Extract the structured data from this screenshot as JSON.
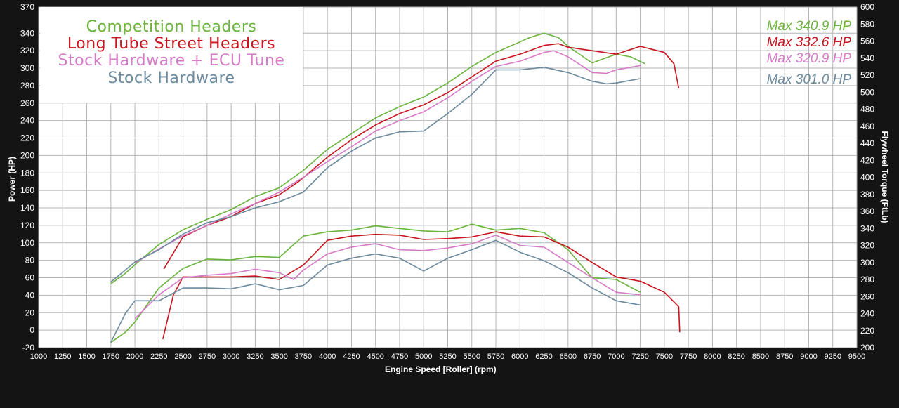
{
  "chart_data": {
    "type": "line",
    "xlabel": "Engine Speed [Roller] (rpm)",
    "ylabel": "Power (HP)",
    "y2label": "Flywheel Torque (FtLb)",
    "xlim": [
      1000,
      9500
    ],
    "ylim": [
      -20,
      370
    ],
    "y2lim": [
      200,
      600
    ],
    "x_ticks": [
      1000,
      1250,
      1500,
      1750,
      2000,
      2250,
      2500,
      2750,
      3000,
      3250,
      3500,
      3750,
      4000,
      4250,
      4500,
      4750,
      5000,
      5250,
      5500,
      5750,
      6000,
      6250,
      6500,
      6750,
      7000,
      7250,
      7500,
      7750,
      8000,
      8250,
      8500,
      8750,
      9000,
      9250,
      9500
    ],
    "y_ticks": [
      -20,
      0,
      20,
      40,
      60,
      80,
      100,
      120,
      140,
      160,
      180,
      200,
      220,
      240,
      260,
      280,
      300,
      320,
      340,
      370
    ],
    "y2_ticks": [
      200,
      220,
      240,
      260,
      280,
      300,
      320,
      340,
      360,
      380,
      400,
      420,
      440,
      460,
      480,
      500,
      520,
      540,
      560,
      580,
      600
    ],
    "grid": true,
    "legend_position": "top-left",
    "series": [
      {
        "name": "Competition Headers",
        "color": "#6ab43c",
        "max_label": "Max 340.9 HP",
        "power": [
          [
            1750,
            53
          ],
          [
            1900,
            65
          ],
          [
            2000,
            75
          ],
          [
            2250,
            98
          ],
          [
            2500,
            115
          ],
          [
            2750,
            127
          ],
          [
            3000,
            138
          ],
          [
            3250,
            153
          ],
          [
            3500,
            163
          ],
          [
            3750,
            183
          ],
          [
            4000,
            207
          ],
          [
            4250,
            225
          ],
          [
            4500,
            243
          ],
          [
            4750,
            256
          ],
          [
            5000,
            267
          ],
          [
            5250,
            283
          ],
          [
            5500,
            302
          ],
          [
            5750,
            318
          ],
          [
            6000,
            330
          ],
          [
            6100,
            335
          ],
          [
            6250,
            340
          ],
          [
            6400,
            335
          ],
          [
            6500,
            325
          ],
          [
            6750,
            306
          ],
          [
            6900,
            312
          ],
          [
            7000,
            316
          ],
          [
            7150,
            313
          ],
          [
            7300,
            305
          ]
        ],
        "torque": [
          [
            1750,
            206
          ],
          [
            1900,
            218
          ],
          [
            2000,
            230
          ],
          [
            2250,
            270
          ],
          [
            2500,
            293
          ],
          [
            2750,
            304
          ],
          [
            3000,
            303
          ],
          [
            3250,
            307
          ],
          [
            3500,
            306
          ],
          [
            3750,
            331
          ],
          [
            4000,
            336
          ],
          [
            4250,
            338
          ],
          [
            4500,
            343
          ],
          [
            4750,
            340
          ],
          [
            5000,
            337
          ],
          [
            5250,
            336
          ],
          [
            5500,
            345
          ],
          [
            5750,
            338
          ],
          [
            6000,
            340
          ],
          [
            6250,
            335
          ],
          [
            6500,
            315
          ],
          [
            6750,
            282
          ],
          [
            7000,
            280
          ],
          [
            7250,
            265
          ]
        ]
      },
      {
        "name": "Long Tube Street Headers",
        "color": "#c8141e",
        "max_label": "Max 332.6 HP",
        "power": [
          [
            2300,
            70
          ],
          [
            2500,
            107
          ],
          [
            2750,
            120
          ],
          [
            3000,
            130
          ],
          [
            3250,
            145
          ],
          [
            3500,
            155
          ],
          [
            3700,
            170
          ],
          [
            4000,
            198
          ],
          [
            4250,
            218
          ],
          [
            4500,
            235
          ],
          [
            4750,
            248
          ],
          [
            5000,
            258
          ],
          [
            5250,
            272
          ],
          [
            5500,
            290
          ],
          [
            5750,
            308
          ],
          [
            6000,
            316
          ],
          [
            6250,
            326
          ],
          [
            6400,
            328
          ],
          [
            6500,
            324
          ],
          [
            6750,
            320
          ],
          [
            7000,
            316
          ],
          [
            7250,
            325
          ],
          [
            7500,
            318
          ],
          [
            7600,
            305
          ],
          [
            7650,
            277
          ]
        ],
        "torque": [
          [
            2290,
            210
          ],
          [
            2400,
            262
          ],
          [
            2500,
            283
          ],
          [
            2750,
            283
          ],
          [
            3000,
            283
          ],
          [
            3250,
            284
          ],
          [
            3500,
            280
          ],
          [
            3750,
            297
          ],
          [
            4000,
            326
          ],
          [
            4250,
            331
          ],
          [
            4500,
            333
          ],
          [
            4750,
            332
          ],
          [
            5000,
            327
          ],
          [
            5250,
            328
          ],
          [
            5500,
            330
          ],
          [
            5750,
            336
          ],
          [
            6000,
            331
          ],
          [
            6250,
            330
          ],
          [
            6500,
            318
          ],
          [
            6750,
            300
          ],
          [
            7000,
            283
          ],
          [
            7250,
            278
          ],
          [
            7500,
            265
          ],
          [
            7650,
            248
          ],
          [
            7660,
            218
          ]
        ]
      },
      {
        "name": "Stock Hardware + ECU Tune",
        "color": "#d67ac7",
        "max_label": "Max 320.9 HP",
        "power": [
          [
            2000,
            77
          ],
          [
            2250,
            93
          ],
          [
            2500,
            108
          ],
          [
            2750,
            120
          ],
          [
            3000,
            133
          ],
          [
            3250,
            145
          ],
          [
            3500,
            158
          ],
          [
            3750,
            175
          ],
          [
            4000,
            193
          ],
          [
            4250,
            210
          ],
          [
            4500,
            228
          ],
          [
            4750,
            240
          ],
          [
            5000,
            250
          ],
          [
            5250,
            266
          ],
          [
            5500,
            285
          ],
          [
            5750,
            302
          ],
          [
            6000,
            308
          ],
          [
            6250,
            318
          ],
          [
            6350,
            320
          ],
          [
            6500,
            313
          ],
          [
            6750,
            295
          ],
          [
            6900,
            294
          ],
          [
            7000,
            298
          ],
          [
            7250,
            303
          ]
        ],
        "torque": [
          [
            2000,
            234
          ],
          [
            2250,
            262
          ],
          [
            2500,
            282
          ],
          [
            2750,
            285
          ],
          [
            3000,
            287
          ],
          [
            3250,
            292
          ],
          [
            3500,
            288
          ],
          [
            3650,
            280
          ],
          [
            3750,
            291
          ],
          [
            4000,
            310
          ],
          [
            4250,
            318
          ],
          [
            4500,
            322
          ],
          [
            4750,
            315
          ],
          [
            5000,
            314
          ],
          [
            5250,
            317
          ],
          [
            5500,
            322
          ],
          [
            5750,
            332
          ],
          [
            6000,
            320
          ],
          [
            6250,
            318
          ],
          [
            6500,
            300
          ],
          [
            6750,
            282
          ],
          [
            7000,
            265
          ],
          [
            7250,
            262
          ]
        ]
      },
      {
        "name": "Stock Hardware",
        "color": "#6b8a9e",
        "max_label": "Max 301.0 HP",
        "power": [
          [
            1750,
            55
          ],
          [
            2000,
            78
          ],
          [
            2250,
            92
          ],
          [
            2500,
            110
          ],
          [
            2750,
            123
          ],
          [
            3000,
            130
          ],
          [
            3250,
            140
          ],
          [
            3500,
            147
          ],
          [
            3750,
            158
          ],
          [
            4000,
            186
          ],
          [
            4250,
            205
          ],
          [
            4500,
            220
          ],
          [
            4750,
            227
          ],
          [
            5000,
            228
          ],
          [
            5250,
            248
          ],
          [
            5500,
            270
          ],
          [
            5750,
            298
          ],
          [
            6000,
            298
          ],
          [
            6250,
            301
          ],
          [
            6500,
            295
          ],
          [
            6750,
            285
          ],
          [
            6900,
            282
          ],
          [
            7000,
            283
          ],
          [
            7250,
            288
          ]
        ],
        "torque": [
          [
            1750,
            206
          ],
          [
            1900,
            240
          ],
          [
            2000,
            255
          ],
          [
            2250,
            255
          ],
          [
            2500,
            270
          ],
          [
            2750,
            270
          ],
          [
            3000,
            269
          ],
          [
            3250,
            275
          ],
          [
            3500,
            268
          ],
          [
            3750,
            273
          ],
          [
            4000,
            297
          ],
          [
            4250,
            305
          ],
          [
            4500,
            310
          ],
          [
            4750,
            305
          ],
          [
            5000,
            290
          ],
          [
            5250,
            305
          ],
          [
            5500,
            315
          ],
          [
            5750,
            326
          ],
          [
            6000,
            312
          ],
          [
            6250,
            302
          ],
          [
            6500,
            288
          ],
          [
            6750,
            270
          ],
          [
            7000,
            255
          ],
          [
            7250,
            250
          ]
        ]
      }
    ]
  }
}
